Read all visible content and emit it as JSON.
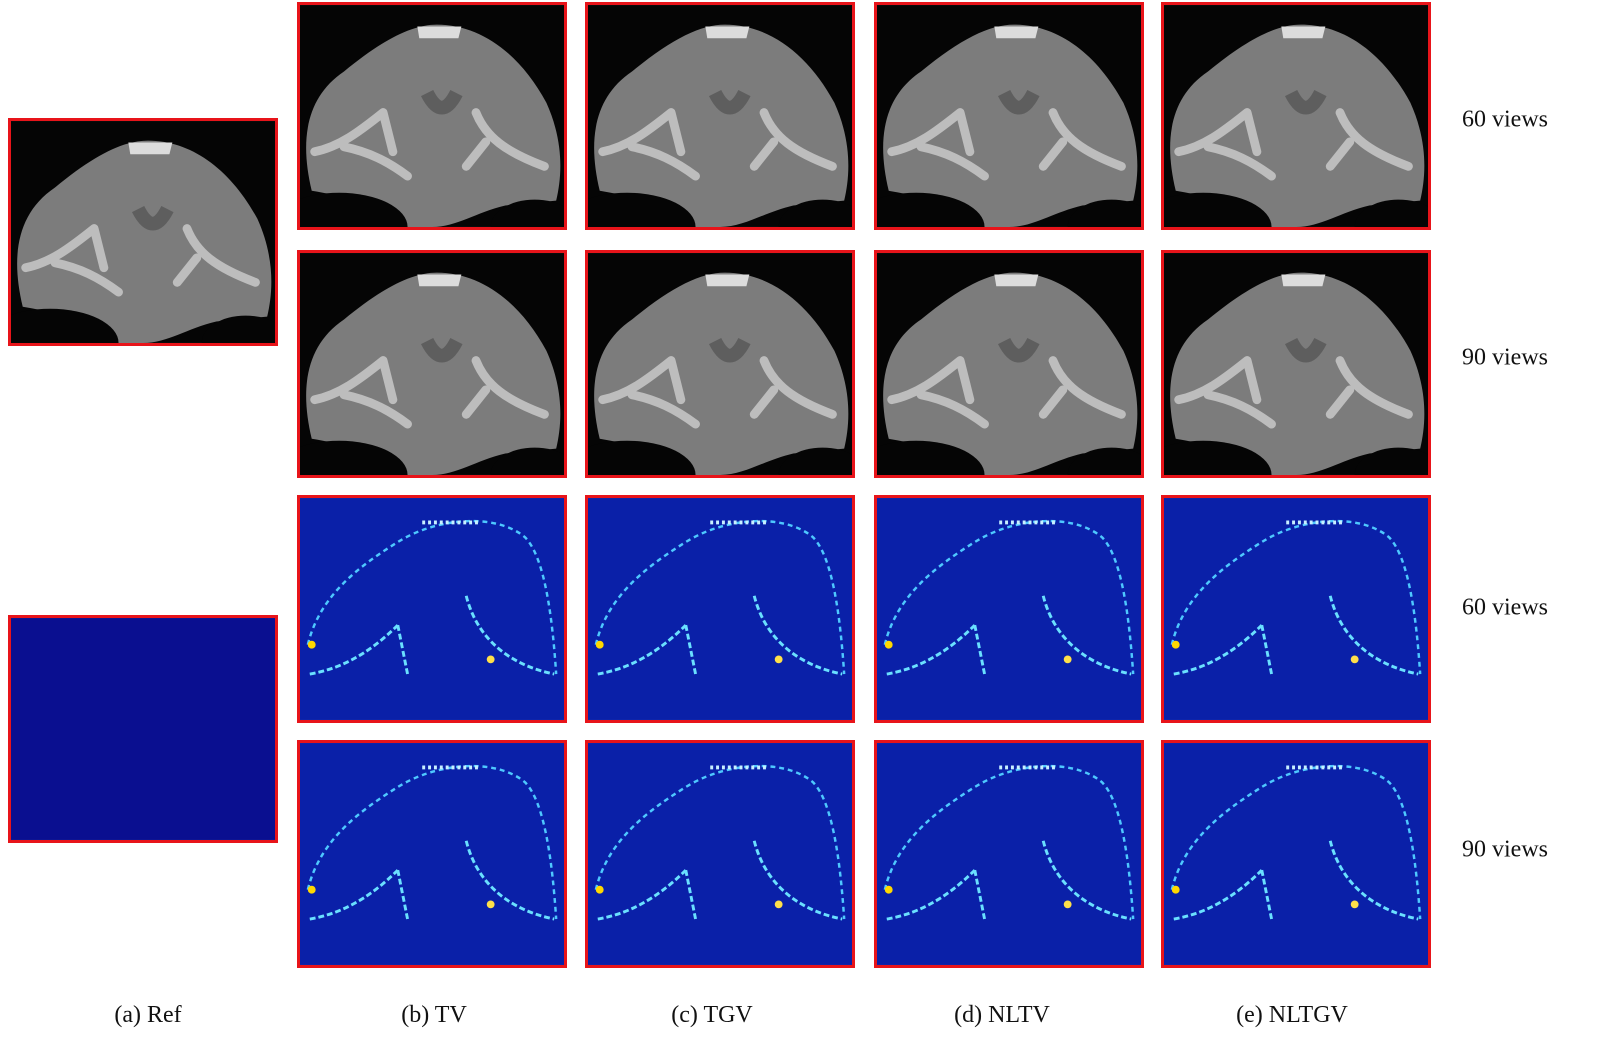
{
  "column_labels": [
    "(a) Ref",
    "(b) TV",
    "(c) TGV",
    "(d) NLTV",
    "(e) NLTGV"
  ],
  "row_labels": [
    "60 views",
    "90 views",
    "60 views",
    "90 views"
  ]
}
